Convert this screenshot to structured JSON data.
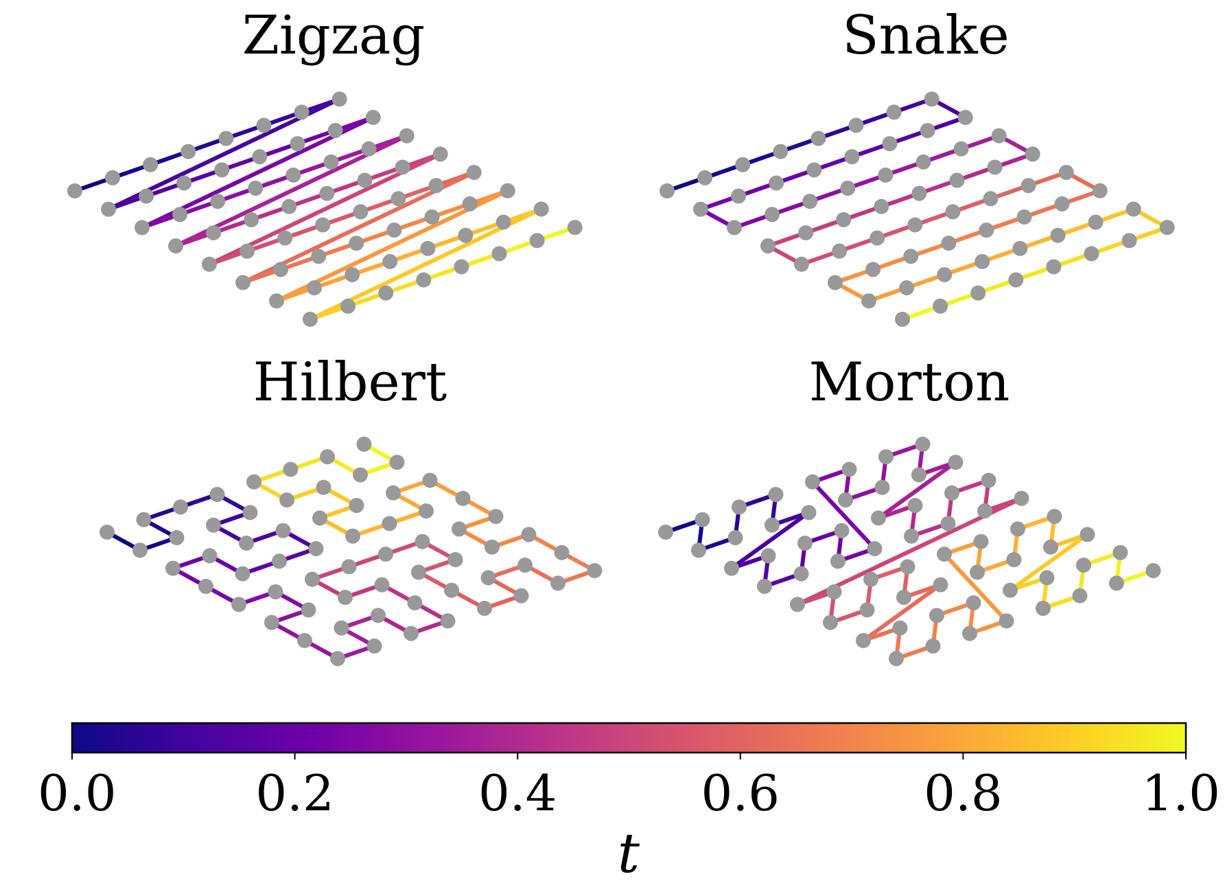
{
  "grid": {
    "rows": 8,
    "cols": 8
  },
  "node_color": "#999999",
  "colormap": {
    "name": "plasma",
    "stops": [
      "#0d0887",
      "#46039f",
      "#7201a8",
      "#9c179e",
      "#bd3786",
      "#d8576b",
      "#ed7953",
      "#fb9f3a",
      "#fdca26",
      "#f0f921"
    ]
  },
  "panels": [
    {
      "key": "zigzag",
      "title": "Zigzag"
    },
    {
      "key": "snake",
      "title": "Snake"
    },
    {
      "key": "hilbert",
      "title": "Hilbert"
    },
    {
      "key": "morton",
      "title": "Morton"
    }
  ],
  "colorbar": {
    "min": 0.0,
    "max": 1.0,
    "ticks": [
      {
        "value": 0.0,
        "label": "0.0"
      },
      {
        "value": 0.2,
        "label": "0.2"
      },
      {
        "value": 0.4,
        "label": "0.4"
      },
      {
        "value": 0.6,
        "label": "0.6"
      },
      {
        "value": 0.8,
        "label": "0.8"
      },
      {
        "value": 1.0,
        "label": "1.0"
      }
    ],
    "label": "t"
  }
}
